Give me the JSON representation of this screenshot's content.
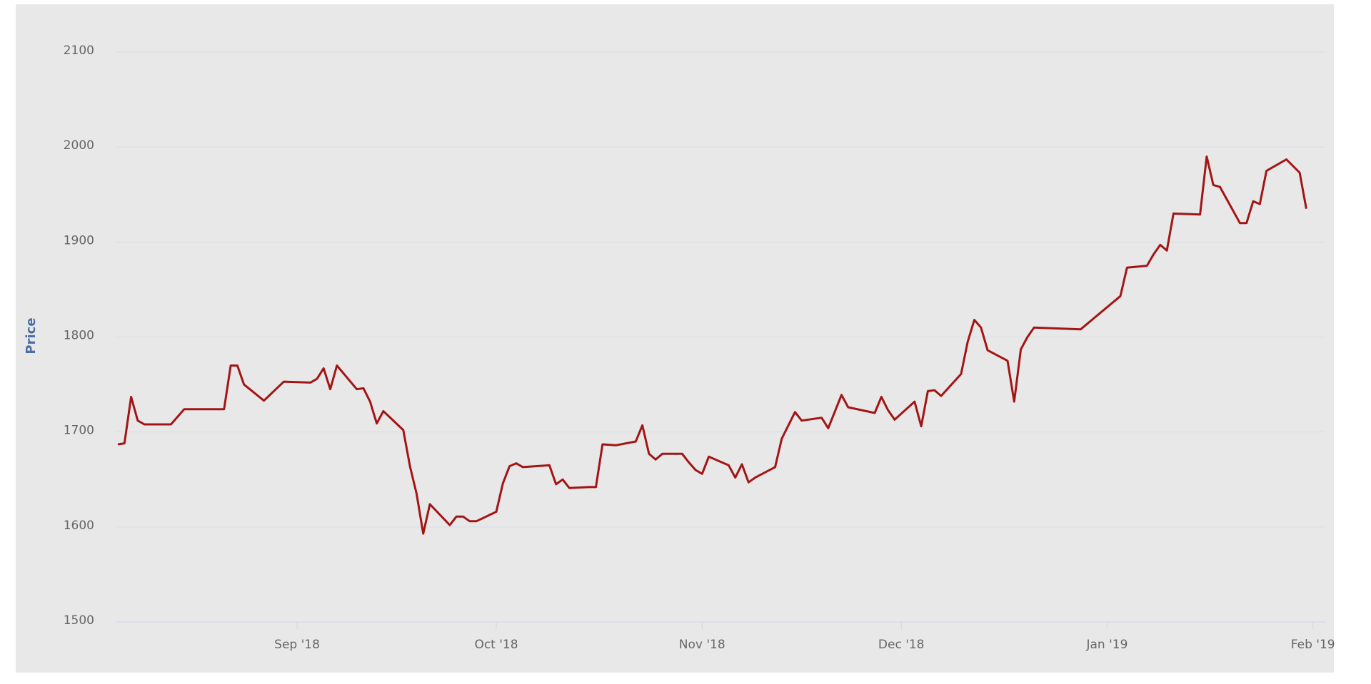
{
  "chart_data": {
    "type": "line",
    "y_label": "Price",
    "x": [
      0,
      1,
      2,
      3,
      4,
      8,
      10,
      16,
      17,
      18,
      19,
      22,
      25,
      29,
      30,
      31,
      32,
      33,
      36,
      37,
      38,
      39,
      40,
      43,
      44,
      45,
      46,
      47,
      50,
      51,
      52,
      53,
      54,
      57,
      58,
      59,
      60,
      61,
      65,
      66,
      67,
      68,
      71,
      72,
      73,
      75,
      78,
      79,
      80,
      81,
      82,
      85,
      86,
      87,
      88,
      89,
      92,
      93,
      94,
      95,
      96,
      99,
      100,
      102,
      103,
      106,
      107,
      109,
      110,
      114,
      115,
      116,
      117,
      120,
      121,
      122,
      123,
      124,
      127,
      128,
      129,
      130,
      131,
      134,
      135,
      136,
      137,
      138,
      145,
      151,
      152,
      155,
      156,
      157,
      158,
      159,
      163,
      164,
      165,
      166,
      169,
      170,
      171,
      172,
      173,
      176,
      178,
      179
    ],
    "series": [
      {
        "name": "Price",
        "color": "#a31515",
        "values": [
          1687,
          1688,
          1737,
          1712,
          1708,
          1708,
          1724,
          1724,
          1770,
          1770,
          1750,
          1733,
          1753,
          1752,
          1756,
          1767,
          1745,
          1770,
          1745,
          1746,
          1732,
          1709,
          1722,
          1702,
          1664,
          1635,
          1593,
          1624,
          1602,
          1611,
          1611,
          1606,
          1606,
          1616,
          1646,
          1664,
          1667,
          1663,
          1665,
          1645,
          1650,
          1641,
          1642,
          1642,
          1687,
          1686,
          1690,
          1707,
          1677,
          1671,
          1677,
          1677,
          1668,
          1660,
          1656,
          1674,
          1665,
          1652,
          1666,
          1647,
          1652,
          1663,
          1693,
          1721,
          1712,
          1715,
          1704,
          1739,
          1726,
          1720,
          1737,
          1723,
          1713,
          1732,
          1706,
          1743,
          1744,
          1738,
          1761,
          1795,
          1818,
          1810,
          1786,
          1775,
          1732,
          1787,
          1800,
          1810,
          1808,
          1843,
          1873,
          1875,
          1887,
          1897,
          1891,
          1930,
          1929,
          1990,
          1960,
          1958,
          1920,
          1920,
          1943,
          1940,
          1975,
          1987,
          1973,
          1935
        ]
      }
    ],
    "xlim": [
      0,
      181
    ],
    "xticks": [
      {
        "value": 27,
        "label": "Sep '18"
      },
      {
        "value": 57,
        "label": "Oct '18"
      },
      {
        "value": 88,
        "label": "Nov '18"
      },
      {
        "value": 118,
        "label": "Dec '18"
      },
      {
        "value": 149,
        "label": "Jan '19"
      },
      {
        "value": 180,
        "label": "Feb '19"
      }
    ],
    "ylim": [
      1500,
      2100
    ],
    "yticks": [
      1500,
      1600,
      1700,
      1800,
      1900,
      2000,
      2100
    ],
    "grid": true
  }
}
